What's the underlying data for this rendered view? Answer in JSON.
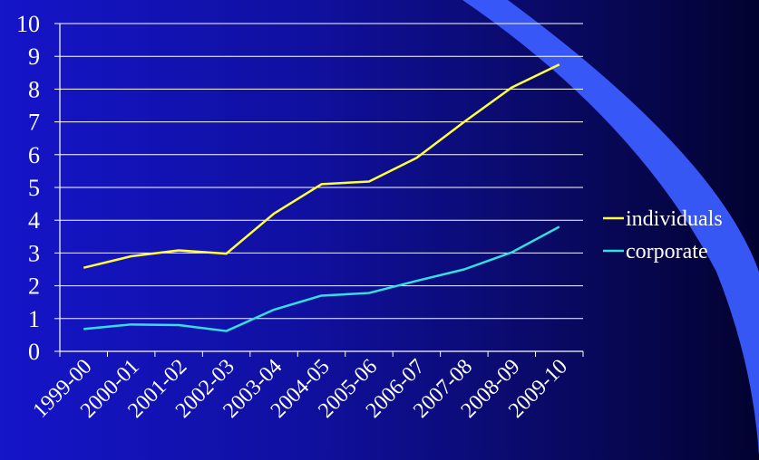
{
  "chart_data": {
    "type": "line",
    "categories": [
      "1999-00",
      "2000-01",
      "2001-02",
      "2002-03",
      "2003-04",
      "2004-05",
      "2005-06",
      "2006-07",
      "2007-08",
      "2008-09",
      "2009-10"
    ],
    "series": [
      {
        "name": "individuals",
        "color": "#ffff3a",
        "values": [
          2.55,
          2.9,
          3.08,
          2.98,
          4.2,
          5.1,
          5.18,
          5.9,
          7.0,
          8.05,
          8.75
        ]
      },
      {
        "name": "corporate",
        "color": "#33e0e0",
        "values": [
          0.68,
          0.82,
          0.8,
          0.62,
          1.27,
          1.7,
          1.78,
          2.15,
          2.5,
          3.02,
          3.8
        ]
      }
    ],
    "y_ticks": [
      "0",
      "1",
      "2",
      "3",
      "4",
      "5",
      "6",
      "7",
      "8",
      "9",
      "10"
    ],
    "ylim": [
      0,
      10
    ],
    "grid": true,
    "legend": "right",
    "colors": {
      "axis": "#ffffff",
      "grid": "#ffffff",
      "background": "#1515c9",
      "swoosh": "#3a5cff"
    }
  }
}
